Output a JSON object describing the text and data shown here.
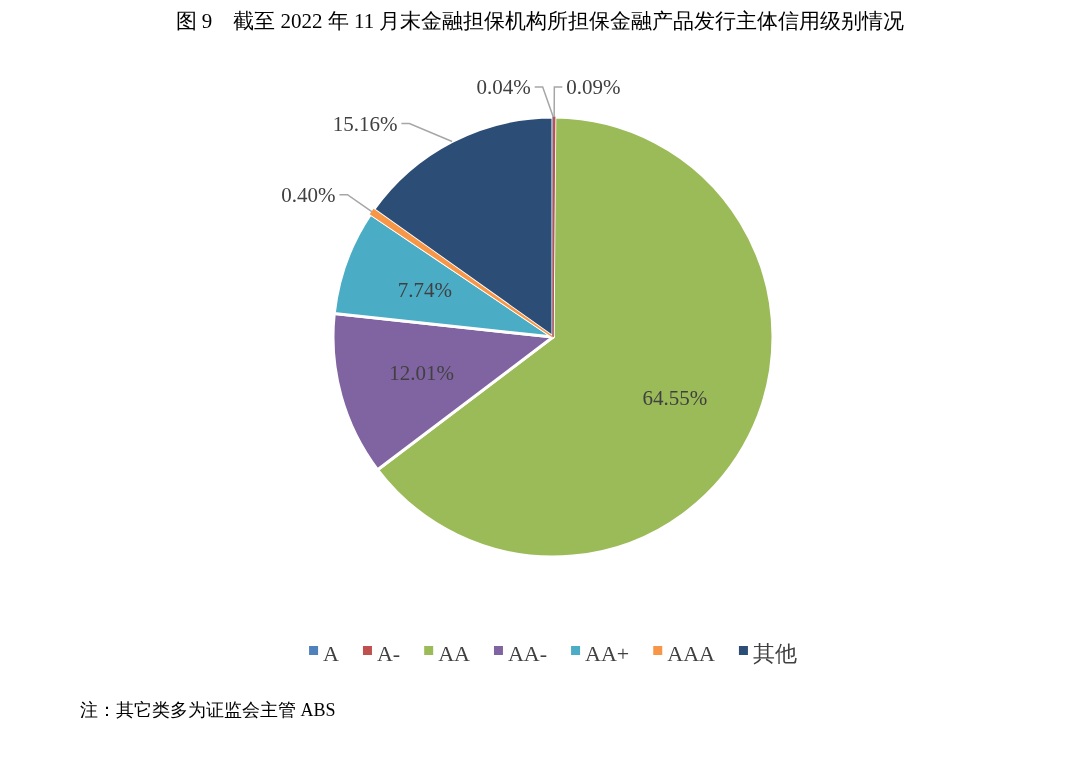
{
  "chart_data": {
    "type": "pie",
    "title": "图 9　截至 2022 年 11 月末金融担保机构所担保金融产品发行主体信用级别情况",
    "categories": [
      "A",
      "A-",
      "AA",
      "AA-",
      "AA+",
      "AAA",
      "其他"
    ],
    "values": [
      0.04,
      0.09,
      64.55,
      12.01,
      7.74,
      0.4,
      15.16
    ],
    "value_labels": [
      "0.04%",
      "0.09%",
      "64.55%",
      "12.01%",
      "7.74%",
      "0.40%",
      "15.16%"
    ],
    "colors": [
      "#4f81bd",
      "#c0504d",
      "#9bbb59",
      "#8064a2",
      "#4bacc6",
      "#f79646",
      "#2c4d75"
    ],
    "legend": "bottom",
    "annotations": [
      "注：其它类多为证监会主管 ABS"
    ]
  }
}
